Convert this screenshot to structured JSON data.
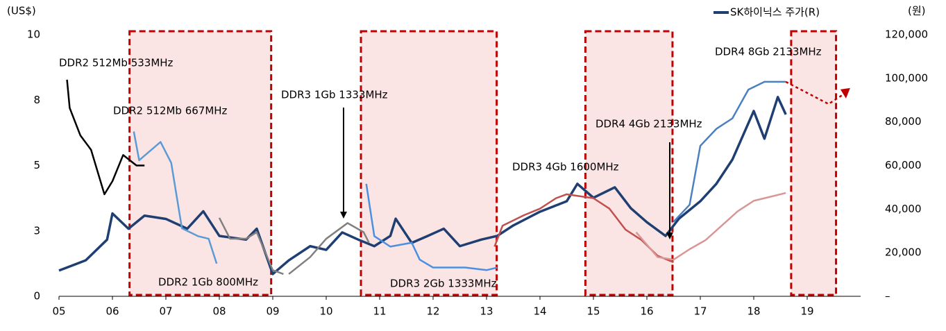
{
  "chart_data": {
    "type": "line",
    "left_axis_label": "(US$)",
    "right_axis_label": "(원)",
    "xlim": [
      2005,
      2020
    ],
    "xticks": [
      {
        "value": 2005,
        "label": "05"
      },
      {
        "value": 2006,
        "label": "06"
      },
      {
        "value": 2007,
        "label": "07"
      },
      {
        "value": 2008,
        "label": "08"
      },
      {
        "value": 2009,
        "label": "09"
      },
      {
        "value": 2010,
        "label": "10"
      },
      {
        "value": 2011,
        "label": "11"
      },
      {
        "value": 2012,
        "label": "12"
      },
      {
        "value": 2013,
        "label": "13"
      },
      {
        "value": 2014,
        "label": "14"
      },
      {
        "value": 2015,
        "label": "15"
      },
      {
        "value": 2016,
        "label": "16"
      },
      {
        "value": 2017,
        "label": "17"
      },
      {
        "value": 2018,
        "label": "18"
      },
      {
        "value": 2019,
        "label": "19"
      }
    ],
    "ylim": [
      0,
      10
    ],
    "yticks": [
      0,
      {
        "value": 2.5,
        "label": "3"
      },
      5,
      {
        "value": 7.5,
        "label": "8"
      },
      10
    ],
    "y2lim": [
      0,
      120000
    ],
    "y2ticks": [
      {
        "value": 0,
        "label": "–"
      },
      {
        "value": 20000,
        "label": "20,000"
      },
      {
        "value": 40000,
        "label": "40,000"
      },
      {
        "value": 60000,
        "label": "60,000"
      },
      {
        "value": 80000,
        "label": "80,000"
      },
      {
        "value": 100000,
        "label": "100,000"
      },
      {
        "value": 120000,
        "label": "120,000"
      }
    ],
    "shaded_periods": [
      [
        2006.32,
        2008.97
      ],
      [
        2010.65,
        2013.19
      ],
      [
        2014.85,
        2016.48
      ],
      [
        2018.7,
        2019.54
      ]
    ],
    "series": [
      {
        "name": "SK하이닉스 주가(R)",
        "color": "#1f3f73",
        "axis": "y2",
        "x": [
          2005.0,
          2005.5,
          2005.9,
          2006.0,
          2006.3,
          2006.6,
          2007.0,
          2007.4,
          2007.7,
          2008.0,
          2008.5,
          2008.7,
          2009.0,
          2009.3,
          2009.7,
          2010.0,
          2010.3,
          2010.6,
          2010.9,
          2011.2,
          2011.3,
          2011.6,
          2011.9,
          2012.2,
          2012.5,
          2012.9,
          2013.2,
          2013.5,
          2014.0,
          2014.5,
          2014.7,
          2015.0,
          2015.4,
          2015.7,
          2016.0,
          2016.35,
          2016.6,
          2017.0,
          2017.3,
          2017.6,
          2018.0,
          2018.2,
          2018.45,
          2018.6
        ],
        "values": [
          11800,
          16500,
          26000,
          38000,
          31000,
          37000,
          35500,
          31000,
          39000,
          27700,
          26000,
          31000,
          10200,
          16500,
          23000,
          21300,
          29300,
          26000,
          23000,
          27700,
          35600,
          24500,
          27700,
          31000,
          23000,
          26000,
          27700,
          32500,
          38800,
          43600,
          51600,
          45200,
          50000,
          40400,
          34000,
          27700,
          35600,
          43600,
          51600,
          62700,
          85000,
          72300,
          91400,
          83400
        ]
      },
      {
        "name": "DDR2 512Mb 533MHz",
        "color": "#000000",
        "x": [
          2005.15,
          2005.2,
          2005.4,
          2005.6,
          2005.85,
          2006.0,
          2006.2,
          2006.45,
          2006.6
        ],
        "values": [
          8.28,
          7.2,
          6.15,
          5.6,
          3.9,
          4.4,
          5.4,
          5.0,
          5.0
        ]
      },
      {
        "name": "DDR2 512Mb 667MHz",
        "color": "#5b9bd5",
        "x": [
          2006.4,
          2006.5,
          2006.9,
          2007.1,
          2007.3,
          2007.6,
          2007.8,
          2007.95
        ],
        "values": [
          6.3,
          5.2,
          5.9,
          5.1,
          2.6,
          2.3,
          2.2,
          1.25
        ]
      },
      {
        "name": "DDR2 1Gb 800MHz",
        "color": "#808080",
        "x": [
          2008.0,
          2008.2,
          2008.5,
          2008.7,
          2009.0,
          2009.2
        ],
        "values": [
          3.0,
          2.2,
          2.2,
          2.45,
          1.0,
          0.85
        ]
      },
      {
        "name": "DDR3 1Gb 1333MHz",
        "color": "#808080",
        "x": [
          2009.3,
          2009.7,
          2010.0,
          2010.4,
          2010.7,
          2010.8
        ],
        "values": [
          0.85,
          1.5,
          2.2,
          2.8,
          2.45,
          2.05
        ]
      },
      {
        "name": "DDR3 2Gb 1333MHz",
        "color": "#4a90e2",
        "x": [
          2010.75,
          2010.9,
          2011.2,
          2011.6,
          2011.75,
          2012.0,
          2012.6,
          2013.0,
          2013.2
        ],
        "values": [
          4.3,
          2.3,
          1.9,
          2.05,
          1.4,
          1.1,
          1.1,
          1.0,
          1.1
        ]
      },
      {
        "name": "DDR3 4Gb 1600MHz",
        "color": "#c0504d",
        "x": [
          2013.15,
          2013.3,
          2013.7,
          2014.0,
          2014.3,
          2014.5,
          2015.0,
          2015.3,
          2015.6,
          2015.9,
          2016.2,
          2016.5
        ],
        "values": [
          1.9,
          2.7,
          3.1,
          3.35,
          3.75,
          3.9,
          3.75,
          3.35,
          2.55,
          2.15,
          1.55,
          1.3
        ]
      },
      {
        "name": "DDR4 4Gb 2133MHz",
        "color": "#d99694",
        "x": [
          2015.8,
          2016.2,
          2016.5,
          2016.8,
          2017.1,
          2017.4,
          2017.7,
          2018.0,
          2018.3,
          2018.6
        ],
        "values": [
          2.45,
          1.5,
          1.4,
          1.8,
          2.15,
          2.7,
          3.25,
          3.65,
          3.8,
          3.95
        ]
      },
      {
        "name": "DDR4 8Gb 2133MHz",
        "color": "#4a7fc1",
        "x": [
          2016.5,
          2016.8,
          2017.0,
          2017.3,
          2017.6,
          2017.9,
          2018.2,
          2018.6
        ],
        "values": [
          2.85,
          3.5,
          5.75,
          6.4,
          6.8,
          7.9,
          8.2,
          8.2
        ]
      },
      {
        "color": "#c00000",
        "style": "dotted",
        "x": [
          2018.6,
          2019.4,
          2019.7
        ],
        "values": [
          8.2,
          7.35,
          7.75
        ]
      }
    ]
  }
}
